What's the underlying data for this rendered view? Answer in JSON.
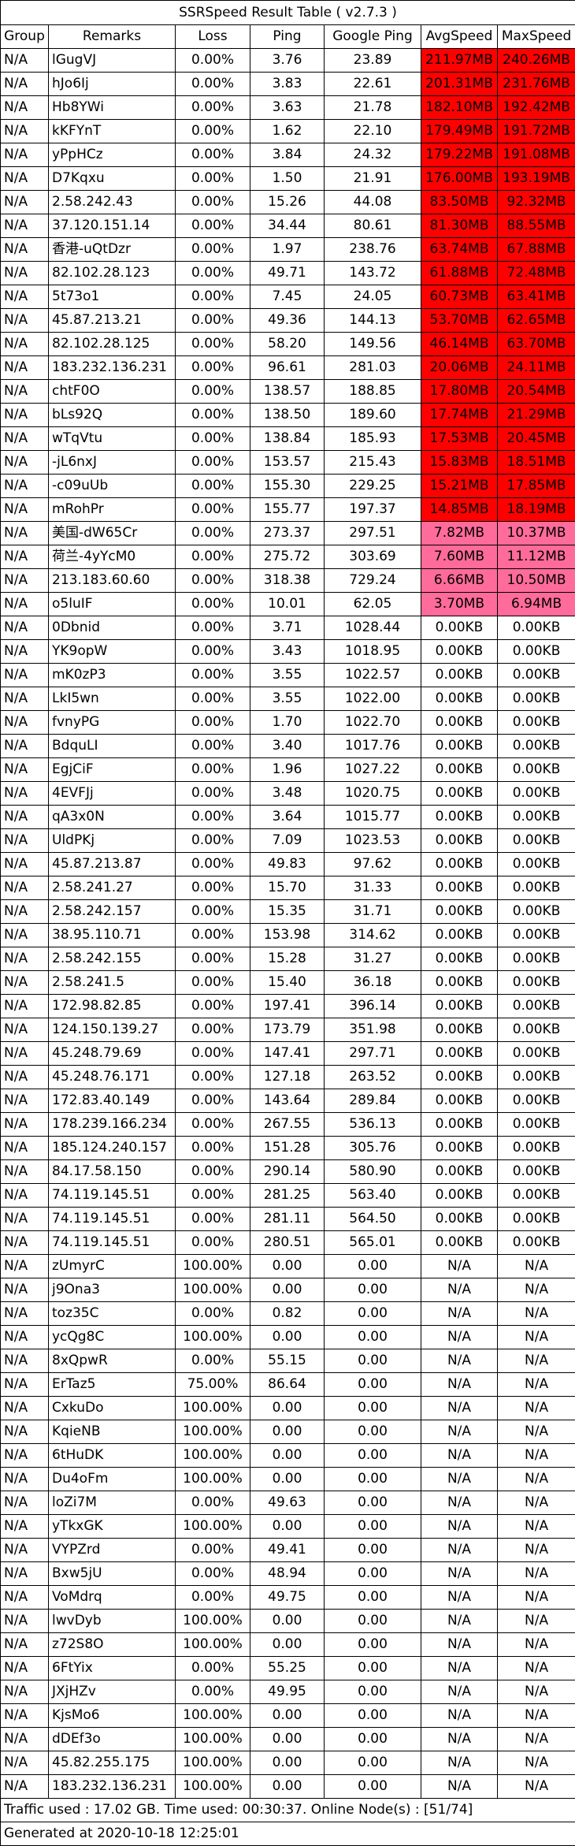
{
  "title": "SSRSpeed Result Table ( v2.7.3 )",
  "headers": [
    "Group",
    "Remarks",
    "Loss",
    "Ping",
    "Google Ping",
    "AvgSpeed",
    "MaxSpeed"
  ],
  "colors": {
    "speed_high": "#ff0000",
    "speed_low": "#ff6b9a",
    "speed_none": "#ffffff",
    "border": "#000000"
  },
  "rows": [
    {
      "group": "N/A",
      "remarks": "lGugVJ",
      "loss": "0.00%",
      "ping": "3.76",
      "google_ping": "23.89",
      "avg_speed": "211.97MB",
      "max_speed": "240.26MB",
      "tier": "high"
    },
    {
      "group": "N/A",
      "remarks": "hJo6Ij",
      "loss": "0.00%",
      "ping": "3.83",
      "google_ping": "22.61",
      "avg_speed": "201.31MB",
      "max_speed": "231.76MB",
      "tier": "high"
    },
    {
      "group": "N/A",
      "remarks": "Hb8YWi",
      "loss": "0.00%",
      "ping": "3.63",
      "google_ping": "21.78",
      "avg_speed": "182.10MB",
      "max_speed": "192.42MB",
      "tier": "high"
    },
    {
      "group": "N/A",
      "remarks": "kKFYnT",
      "loss": "0.00%",
      "ping": "1.62",
      "google_ping": "22.10",
      "avg_speed": "179.49MB",
      "max_speed": "191.72MB",
      "tier": "high"
    },
    {
      "group": "N/A",
      "remarks": "yPpHCz",
      "loss": "0.00%",
      "ping": "3.84",
      "google_ping": "24.32",
      "avg_speed": "179.22MB",
      "max_speed": "191.08MB",
      "tier": "high"
    },
    {
      "group": "N/A",
      "remarks": "D7Kqxu",
      "loss": "0.00%",
      "ping": "1.50",
      "google_ping": "21.91",
      "avg_speed": "176.00MB",
      "max_speed": "193.19MB",
      "tier": "high"
    },
    {
      "group": "N/A",
      "remarks": "2.58.242.43",
      "loss": "0.00%",
      "ping": "15.26",
      "google_ping": "44.08",
      "avg_speed": "83.50MB",
      "max_speed": "92.32MB",
      "tier": "high"
    },
    {
      "group": "N/A",
      "remarks": "37.120.151.14",
      "loss": "0.00%",
      "ping": "34.44",
      "google_ping": "80.61",
      "avg_speed": "81.30MB",
      "max_speed": "88.55MB",
      "tier": "high"
    },
    {
      "group": "N/A",
      "remarks": "香港-uQtDzr",
      "loss": "0.00%",
      "ping": "1.97",
      "google_ping": "238.76",
      "avg_speed": "63.74MB",
      "max_speed": "67.88MB",
      "tier": "high"
    },
    {
      "group": "N/A",
      "remarks": "82.102.28.123",
      "loss": "0.00%",
      "ping": "49.71",
      "google_ping": "143.72",
      "avg_speed": "61.88MB",
      "max_speed": "72.48MB",
      "tier": "high"
    },
    {
      "group": "N/A",
      "remarks": "5t73o1",
      "loss": "0.00%",
      "ping": "7.45",
      "google_ping": "24.05",
      "avg_speed": "60.73MB",
      "max_speed": "63.41MB",
      "tier": "high"
    },
    {
      "group": "N/A",
      "remarks": "45.87.213.21",
      "loss": "0.00%",
      "ping": "49.36",
      "google_ping": "144.13",
      "avg_speed": "53.70MB",
      "max_speed": "62.65MB",
      "tier": "high"
    },
    {
      "group": "N/A",
      "remarks": "82.102.28.125",
      "loss": "0.00%",
      "ping": "58.20",
      "google_ping": "149.56",
      "avg_speed": "46.14MB",
      "max_speed": "63.70MB",
      "tier": "high"
    },
    {
      "group": "N/A",
      "remarks": "183.232.136.231",
      "loss": "0.00%",
      "ping": "96.61",
      "google_ping": "281.03",
      "avg_speed": "20.06MB",
      "max_speed": "24.11MB",
      "tier": "high"
    },
    {
      "group": "N/A",
      "remarks": "chtF0O",
      "loss": "0.00%",
      "ping": "138.57",
      "google_ping": "188.85",
      "avg_speed": "17.80MB",
      "max_speed": "20.54MB",
      "tier": "high"
    },
    {
      "group": "N/A",
      "remarks": "bLs92Q",
      "loss": "0.00%",
      "ping": "138.50",
      "google_ping": "189.60",
      "avg_speed": "17.74MB",
      "max_speed": "21.29MB",
      "tier": "high"
    },
    {
      "group": "N/A",
      "remarks": "wTqVtu",
      "loss": "0.00%",
      "ping": "138.84",
      "google_ping": "185.93",
      "avg_speed": "17.53MB",
      "max_speed": "20.45MB",
      "tier": "high"
    },
    {
      "group": "N/A",
      "remarks": "-jL6nxJ",
      "loss": "0.00%",
      "ping": "153.57",
      "google_ping": "215.43",
      "avg_speed": "15.83MB",
      "max_speed": "18.51MB",
      "tier": "high"
    },
    {
      "group": "N/A",
      "remarks": "-c09uUb",
      "loss": "0.00%",
      "ping": "155.30",
      "google_ping": "229.25",
      "avg_speed": "15.21MB",
      "max_speed": "17.85MB",
      "tier": "high"
    },
    {
      "group": "N/A",
      "remarks": "mRohPr",
      "loss": "0.00%",
      "ping": "155.77",
      "google_ping": "197.37",
      "avg_speed": "14.85MB",
      "max_speed": "18.19MB",
      "tier": "high"
    },
    {
      "group": "N/A",
      "remarks": "美国-dW65Cr",
      "loss": "0.00%",
      "ping": "273.37",
      "google_ping": "297.51",
      "avg_speed": "7.82MB",
      "max_speed": "10.37MB",
      "tier": "low"
    },
    {
      "group": "N/A",
      "remarks": "荷兰-4yYcM0",
      "loss": "0.00%",
      "ping": "275.72",
      "google_ping": "303.69",
      "avg_speed": "7.60MB",
      "max_speed": "11.12MB",
      "tier": "low"
    },
    {
      "group": "N/A",
      "remarks": "213.183.60.60",
      "loss": "0.00%",
      "ping": "318.38",
      "google_ping": "729.24",
      "avg_speed": "6.66MB",
      "max_speed": "10.50MB",
      "tier": "low"
    },
    {
      "group": "N/A",
      "remarks": "o5luIF",
      "loss": "0.00%",
      "ping": "10.01",
      "google_ping": "62.05",
      "avg_speed": "3.70MB",
      "max_speed": "6.94MB",
      "tier": "low"
    },
    {
      "group": "N/A",
      "remarks": "0Dbnid",
      "loss": "0.00%",
      "ping": "3.71",
      "google_ping": "1028.44",
      "avg_speed": "0.00KB",
      "max_speed": "0.00KB",
      "tier": "none"
    },
    {
      "group": "N/A",
      "remarks": "YK9opW",
      "loss": "0.00%",
      "ping": "3.43",
      "google_ping": "1018.95",
      "avg_speed": "0.00KB",
      "max_speed": "0.00KB",
      "tier": "none"
    },
    {
      "group": "N/A",
      "remarks": "mK0zP3",
      "loss": "0.00%",
      "ping": "3.55",
      "google_ping": "1022.57",
      "avg_speed": "0.00KB",
      "max_speed": "0.00KB",
      "tier": "none"
    },
    {
      "group": "N/A",
      "remarks": "LkI5wn",
      "loss": "0.00%",
      "ping": "3.55",
      "google_ping": "1022.00",
      "avg_speed": "0.00KB",
      "max_speed": "0.00KB",
      "tier": "none"
    },
    {
      "group": "N/A",
      "remarks": "fvnyPG",
      "loss": "0.00%",
      "ping": "1.70",
      "google_ping": "1022.70",
      "avg_speed": "0.00KB",
      "max_speed": "0.00KB",
      "tier": "none"
    },
    {
      "group": "N/A",
      "remarks": "BdquLI",
      "loss": "0.00%",
      "ping": "3.40",
      "google_ping": "1017.76",
      "avg_speed": "0.00KB",
      "max_speed": "0.00KB",
      "tier": "none"
    },
    {
      "group": "N/A",
      "remarks": "EgjCiF",
      "loss": "0.00%",
      "ping": "1.96",
      "google_ping": "1027.22",
      "avg_speed": "0.00KB",
      "max_speed": "0.00KB",
      "tier": "none"
    },
    {
      "group": "N/A",
      "remarks": "4EVFJj",
      "loss": "0.00%",
      "ping": "3.48",
      "google_ping": "1020.75",
      "avg_speed": "0.00KB",
      "max_speed": "0.00KB",
      "tier": "none"
    },
    {
      "group": "N/A",
      "remarks": "qA3x0N",
      "loss": "0.00%",
      "ping": "3.64",
      "google_ping": "1015.77",
      "avg_speed": "0.00KB",
      "max_speed": "0.00KB",
      "tier": "none"
    },
    {
      "group": "N/A",
      "remarks": "UldPKj",
      "loss": "0.00%",
      "ping": "7.09",
      "google_ping": "1023.53",
      "avg_speed": "0.00KB",
      "max_speed": "0.00KB",
      "tier": "none"
    },
    {
      "group": "N/A",
      "remarks": "45.87.213.87",
      "loss": "0.00%",
      "ping": "49.83",
      "google_ping": "97.62",
      "avg_speed": "0.00KB",
      "max_speed": "0.00KB",
      "tier": "none"
    },
    {
      "group": "N/A",
      "remarks": "2.58.241.27",
      "loss": "0.00%",
      "ping": "15.70",
      "google_ping": "31.33",
      "avg_speed": "0.00KB",
      "max_speed": "0.00KB",
      "tier": "none"
    },
    {
      "group": "N/A",
      "remarks": "2.58.242.157",
      "loss": "0.00%",
      "ping": "15.35",
      "google_ping": "31.71",
      "avg_speed": "0.00KB",
      "max_speed": "0.00KB",
      "tier": "none"
    },
    {
      "group": "N/A",
      "remarks": "38.95.110.71",
      "loss": "0.00%",
      "ping": "153.98",
      "google_ping": "314.62",
      "avg_speed": "0.00KB",
      "max_speed": "0.00KB",
      "tier": "none"
    },
    {
      "group": "N/A",
      "remarks": "2.58.242.155",
      "loss": "0.00%",
      "ping": "15.28",
      "google_ping": "31.27",
      "avg_speed": "0.00KB",
      "max_speed": "0.00KB",
      "tier": "none"
    },
    {
      "group": "N/A",
      "remarks": "2.58.241.5",
      "loss": "0.00%",
      "ping": "15.40",
      "google_ping": "36.18",
      "avg_speed": "0.00KB",
      "max_speed": "0.00KB",
      "tier": "none"
    },
    {
      "group": "N/A",
      "remarks": "172.98.82.85",
      "loss": "0.00%",
      "ping": "197.41",
      "google_ping": "396.14",
      "avg_speed": "0.00KB",
      "max_speed": "0.00KB",
      "tier": "none"
    },
    {
      "group": "N/A",
      "remarks": "124.150.139.27",
      "loss": "0.00%",
      "ping": "173.79",
      "google_ping": "351.98",
      "avg_speed": "0.00KB",
      "max_speed": "0.00KB",
      "tier": "none"
    },
    {
      "group": "N/A",
      "remarks": "45.248.79.69",
      "loss": "0.00%",
      "ping": "147.41",
      "google_ping": "297.71",
      "avg_speed": "0.00KB",
      "max_speed": "0.00KB",
      "tier": "none"
    },
    {
      "group": "N/A",
      "remarks": "45.248.76.171",
      "loss": "0.00%",
      "ping": "127.18",
      "google_ping": "263.52",
      "avg_speed": "0.00KB",
      "max_speed": "0.00KB",
      "tier": "none"
    },
    {
      "group": "N/A",
      "remarks": "172.83.40.149",
      "loss": "0.00%",
      "ping": "143.64",
      "google_ping": "289.84",
      "avg_speed": "0.00KB",
      "max_speed": "0.00KB",
      "tier": "none"
    },
    {
      "group": "N/A",
      "remarks": "178.239.166.234",
      "loss": "0.00%",
      "ping": "267.55",
      "google_ping": "536.13",
      "avg_speed": "0.00KB",
      "max_speed": "0.00KB",
      "tier": "none"
    },
    {
      "group": "N/A",
      "remarks": "185.124.240.157",
      "loss": "0.00%",
      "ping": "151.28",
      "google_ping": "305.76",
      "avg_speed": "0.00KB",
      "max_speed": "0.00KB",
      "tier": "none"
    },
    {
      "group": "N/A",
      "remarks": "84.17.58.150",
      "loss": "0.00%",
      "ping": "290.14",
      "google_ping": "580.90",
      "avg_speed": "0.00KB",
      "max_speed": "0.00KB",
      "tier": "none"
    },
    {
      "group": "N/A",
      "remarks": "74.119.145.51",
      "loss": "0.00%",
      "ping": "281.25",
      "google_ping": "563.40",
      "avg_speed": "0.00KB",
      "max_speed": "0.00KB",
      "tier": "none"
    },
    {
      "group": "N/A",
      "remarks": "74.119.145.51",
      "loss": "0.00%",
      "ping": "281.11",
      "google_ping": "564.50",
      "avg_speed": "0.00KB",
      "max_speed": "0.00KB",
      "tier": "none"
    },
    {
      "group": "N/A",
      "remarks": "74.119.145.51",
      "loss": "0.00%",
      "ping": "280.51",
      "google_ping": "565.01",
      "avg_speed": "0.00KB",
      "max_speed": "0.00KB",
      "tier": "none"
    },
    {
      "group": "N/A",
      "remarks": "zUmyrC",
      "loss": "100.00%",
      "ping": "0.00",
      "google_ping": "0.00",
      "avg_speed": "N/A",
      "max_speed": "N/A",
      "tier": "none"
    },
    {
      "group": "N/A",
      "remarks": "j9Ona3",
      "loss": "100.00%",
      "ping": "0.00",
      "google_ping": "0.00",
      "avg_speed": "N/A",
      "max_speed": "N/A",
      "tier": "none"
    },
    {
      "group": "N/A",
      "remarks": "toz35C",
      "loss": "0.00%",
      "ping": "0.82",
      "google_ping": "0.00",
      "avg_speed": "N/A",
      "max_speed": "N/A",
      "tier": "none"
    },
    {
      "group": "N/A",
      "remarks": "ycQg8C",
      "loss": "100.00%",
      "ping": "0.00",
      "google_ping": "0.00",
      "avg_speed": "N/A",
      "max_speed": "N/A",
      "tier": "none"
    },
    {
      "group": "N/A",
      "remarks": "8xQpwR",
      "loss": "0.00%",
      "ping": "55.15",
      "google_ping": "0.00",
      "avg_speed": "N/A",
      "max_speed": "N/A",
      "tier": "none"
    },
    {
      "group": "N/A",
      "remarks": "ErTaz5",
      "loss": "75.00%",
      "ping": "86.64",
      "google_ping": "0.00",
      "avg_speed": "N/A",
      "max_speed": "N/A",
      "tier": "none"
    },
    {
      "group": "N/A",
      "remarks": "CxkuDo",
      "loss": "100.00%",
      "ping": "0.00",
      "google_ping": "0.00",
      "avg_speed": "N/A",
      "max_speed": "N/A",
      "tier": "none"
    },
    {
      "group": "N/A",
      "remarks": "KqieNB",
      "loss": "100.00%",
      "ping": "0.00",
      "google_ping": "0.00",
      "avg_speed": "N/A",
      "max_speed": "N/A",
      "tier": "none"
    },
    {
      "group": "N/A",
      "remarks": "6tHuDK",
      "loss": "100.00%",
      "ping": "0.00",
      "google_ping": "0.00",
      "avg_speed": "N/A",
      "max_speed": "N/A",
      "tier": "none"
    },
    {
      "group": "N/A",
      "remarks": "Du4oFm",
      "loss": "100.00%",
      "ping": "0.00",
      "google_ping": "0.00",
      "avg_speed": "N/A",
      "max_speed": "N/A",
      "tier": "none"
    },
    {
      "group": "N/A",
      "remarks": "loZi7M",
      "loss": "0.00%",
      "ping": "49.63",
      "google_ping": "0.00",
      "avg_speed": "N/A",
      "max_speed": "N/A",
      "tier": "none"
    },
    {
      "group": "N/A",
      "remarks": "yTkxGK",
      "loss": "100.00%",
      "ping": "0.00",
      "google_ping": "0.00",
      "avg_speed": "N/A",
      "max_speed": "N/A",
      "tier": "none"
    },
    {
      "group": "N/A",
      "remarks": "VYPZrd",
      "loss": "0.00%",
      "ping": "49.41",
      "google_ping": "0.00",
      "avg_speed": "N/A",
      "max_speed": "N/A",
      "tier": "none"
    },
    {
      "group": "N/A",
      "remarks": "Bxw5jU",
      "loss": "0.00%",
      "ping": "48.94",
      "google_ping": "0.00",
      "avg_speed": "N/A",
      "max_speed": "N/A",
      "tier": "none"
    },
    {
      "group": "N/A",
      "remarks": "VoMdrq",
      "loss": "0.00%",
      "ping": "49.75",
      "google_ping": "0.00",
      "avg_speed": "N/A",
      "max_speed": "N/A",
      "tier": "none"
    },
    {
      "group": "N/A",
      "remarks": "lwvDyb",
      "loss": "100.00%",
      "ping": "0.00",
      "google_ping": "0.00",
      "avg_speed": "N/A",
      "max_speed": "N/A",
      "tier": "none"
    },
    {
      "group": "N/A",
      "remarks": "z72S8O",
      "loss": "100.00%",
      "ping": "0.00",
      "google_ping": "0.00",
      "avg_speed": "N/A",
      "max_speed": "N/A",
      "tier": "none"
    },
    {
      "group": "N/A",
      "remarks": "6FtYix",
      "loss": "0.00%",
      "ping": "55.25",
      "google_ping": "0.00",
      "avg_speed": "N/A",
      "max_speed": "N/A",
      "tier": "none"
    },
    {
      "group": "N/A",
      "remarks": "JXjHZv",
      "loss": "0.00%",
      "ping": "49.95",
      "google_ping": "0.00",
      "avg_speed": "N/A",
      "max_speed": "N/A",
      "tier": "none"
    },
    {
      "group": "N/A",
      "remarks": "KjsMo6",
      "loss": "100.00%",
      "ping": "0.00",
      "google_ping": "0.00",
      "avg_speed": "N/A",
      "max_speed": "N/A",
      "tier": "none"
    },
    {
      "group": "N/A",
      "remarks": "dDEf3o",
      "loss": "100.00%",
      "ping": "0.00",
      "google_ping": "0.00",
      "avg_speed": "N/A",
      "max_speed": "N/A",
      "tier": "none"
    },
    {
      "group": "N/A",
      "remarks": "45.82.255.175",
      "loss": "100.00%",
      "ping": "0.00",
      "google_ping": "0.00",
      "avg_speed": "N/A",
      "max_speed": "N/A",
      "tier": "none"
    },
    {
      "group": "N/A",
      "remarks": "183.232.136.231",
      "loss": "100.00%",
      "ping": "0.00",
      "google_ping": "0.00",
      "avg_speed": "N/A",
      "max_speed": "N/A",
      "tier": "none"
    }
  ],
  "footer": {
    "traffic": "Traffic used : 17.02 GB. Time used: 00:30:37. Online Node(s) : [51/74]",
    "generated": "Generated at 2020-10-18 12:25:01"
  }
}
